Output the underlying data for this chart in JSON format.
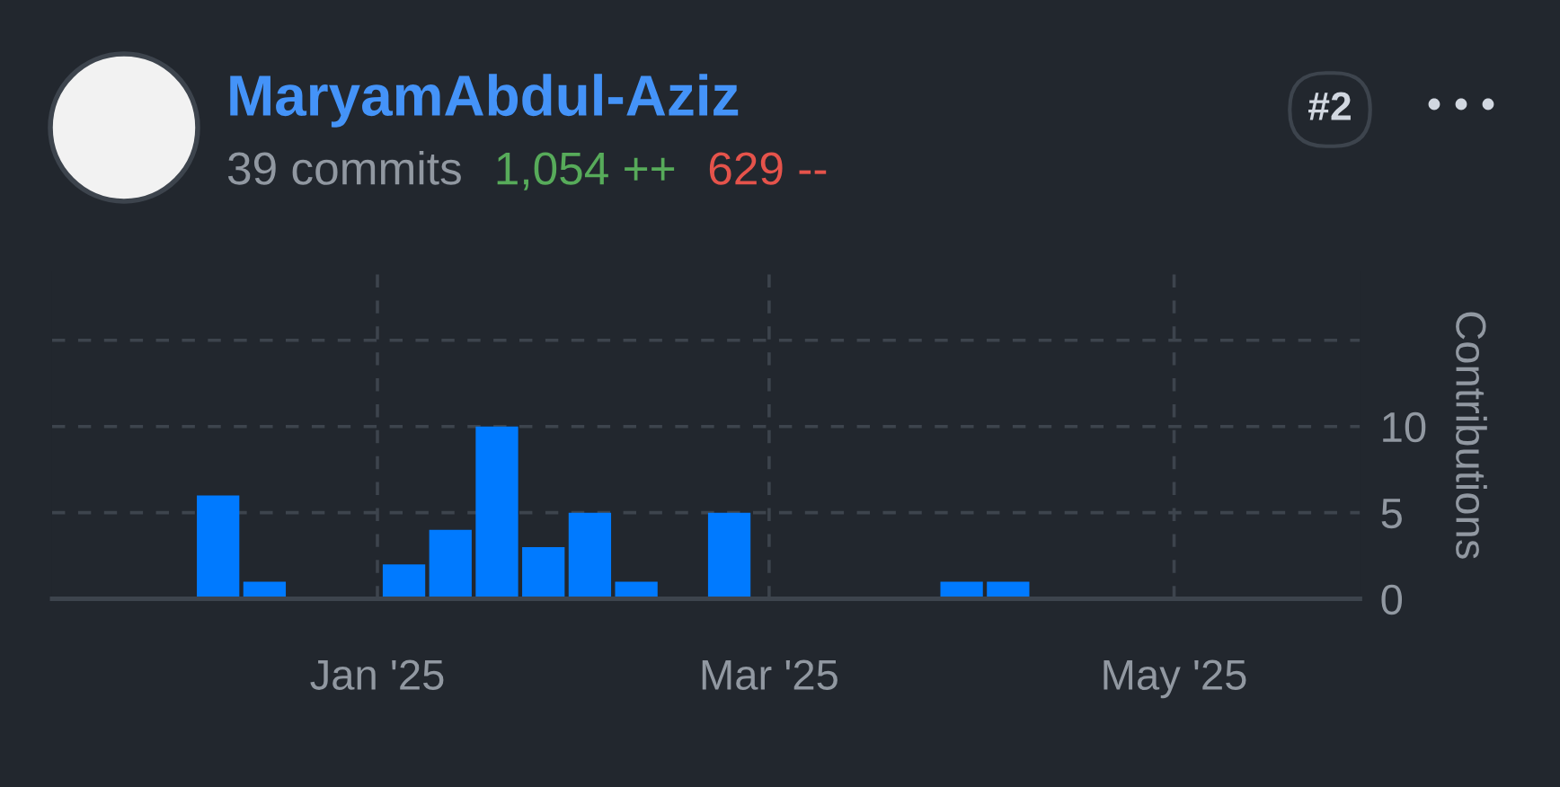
{
  "chart_data": {
    "type": "bar",
    "title": "MaryamAbdul-Aziz",
    "annotations": [
      "39 commits",
      "1,054 ++",
      "629 --",
      "#2"
    ],
    "ylabel": "Contributions",
    "x": [
      "2024-12-08",
      "2024-12-15",
      "2025-01-05",
      "2025-01-12",
      "2025-01-19",
      "2025-01-26",
      "2025-02-02",
      "2025-02-09",
      "2025-02-23",
      "2025-03-30",
      "2025-04-06"
    ],
    "series": [
      {
        "color": "#007aff",
        "values": [
          6,
          1,
          2,
          4,
          10,
          3,
          5,
          1,
          5,
          1,
          1
        ]
      }
    ],
    "xlim": [
      "2024-11-13",
      "2025-05-29"
    ],
    "xticks": [
      {
        "value": "2025-01-01",
        "label": "Jan '25"
      },
      {
        "value": "2025-03-01",
        "label": "Mar '25"
      },
      {
        "value": "2025-05-01",
        "label": "May '25"
      }
    ],
    "ylim": [
      0,
      19
    ],
    "yticks": [
      0,
      5,
      10,
      {
        "value": 15,
        "label": null
      }
    ],
    "grid": true
  }
}
